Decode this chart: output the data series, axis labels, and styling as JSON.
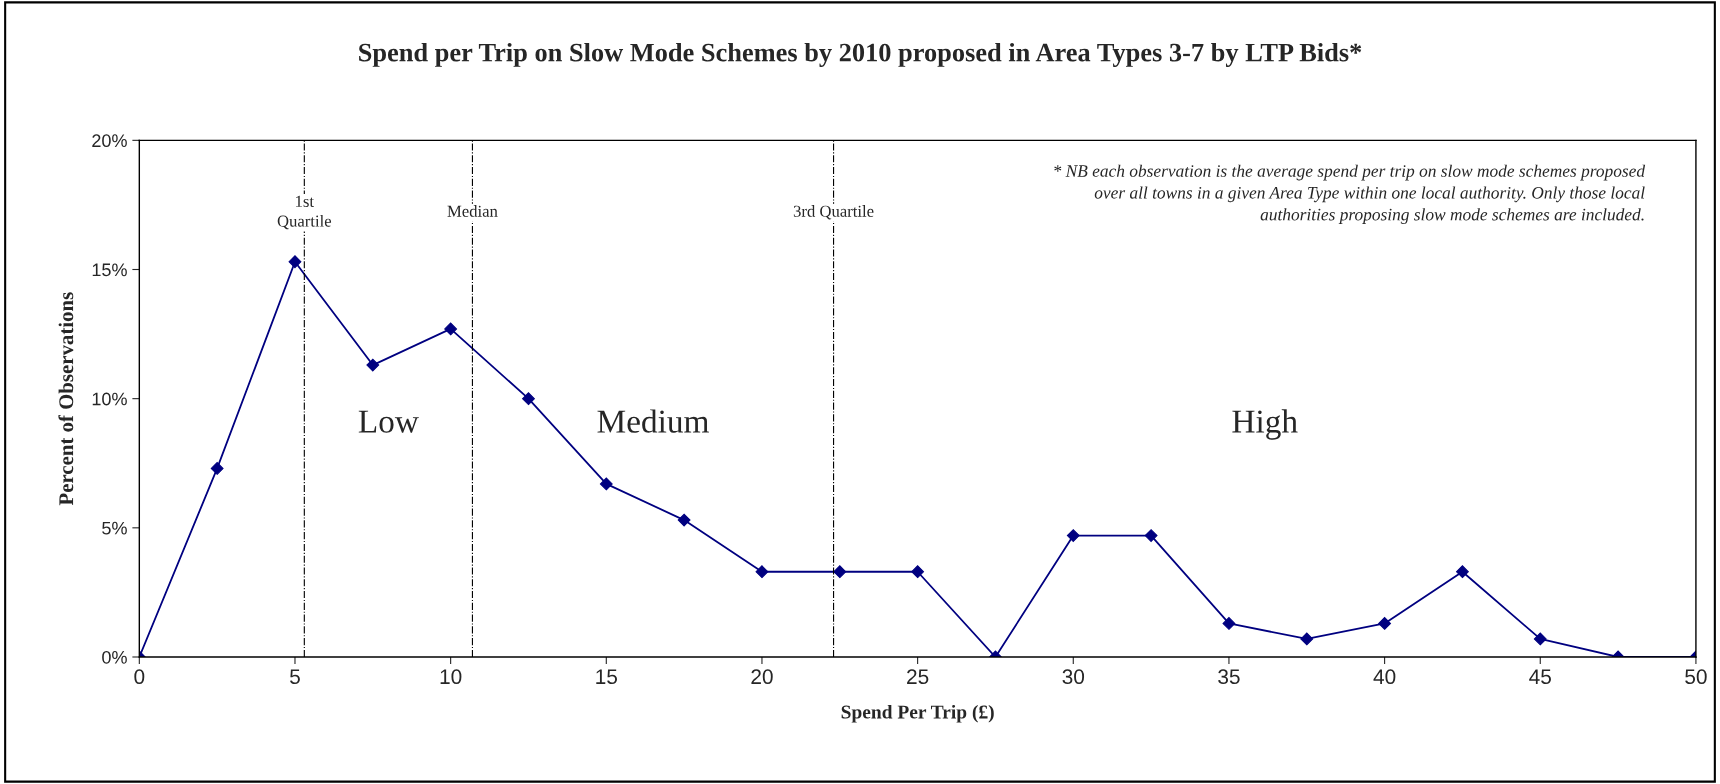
{
  "chart_data": {
    "type": "line",
    "title": "Spend per Trip on Slow Mode Schemes by 2010 proposed in Area Types 3-7 by LTP Bids*",
    "xlabel": "Spend Per Trip (£)",
    "ylabel": "Percent of Observations",
    "x": [
      0,
      2.5,
      5,
      7.5,
      10,
      12.5,
      15,
      17.5,
      20,
      22.5,
      25,
      27.5,
      30,
      32.5,
      35,
      37.5,
      40,
      42.5,
      45,
      47.5,
      50
    ],
    "series": [
      {
        "color": "#000080",
        "values": [
          0,
          7.3,
          15.3,
          11.3,
          12.7,
          10.0,
          6.7,
          5.3,
          3.3,
          3.3,
          3.3,
          0,
          4.7,
          4.7,
          1.3,
          0.7,
          1.3,
          3.3,
          0.7,
          0,
          0
        ]
      }
    ],
    "marker": "diamond",
    "line_style": "solid",
    "grid": false,
    "legend": false,
    "xlim": [
      0,
      50
    ],
    "xticks": [
      0,
      5,
      10,
      15,
      20,
      25,
      30,
      35,
      40,
      45,
      50
    ],
    "ylim": [
      0,
      20
    ],
    "yticks": [
      {
        "value": 0,
        "label": "0%"
      },
      {
        "value": 5,
        "label": "5%"
      },
      {
        "value": 10,
        "label": "10%"
      },
      {
        "value": 15,
        "label": "15%"
      },
      {
        "value": 20,
        "label": "20%"
      }
    ],
    "ref_lines": [
      {
        "axis": "x",
        "value": 5.3,
        "label": "1st\nQuartile",
        "color": "#000000",
        "line_style": "dashdot"
      },
      {
        "axis": "x",
        "value": 10.7,
        "label": "Median",
        "color": "#000000",
        "line_style": "dashdot"
      },
      {
        "axis": "x",
        "value": 22.3,
        "label": "3rd Quartile",
        "color": "#000000",
        "line_style": "dashdot"
      }
    ],
    "annotations": [
      "Low",
      "Medium",
      "High",
      "* NB each observation is the average spend per trip on slow mode schemes proposed over all towns in a given Area Type within one local authority. Only those local authorities proposing slow mode schemes are included."
    ]
  }
}
